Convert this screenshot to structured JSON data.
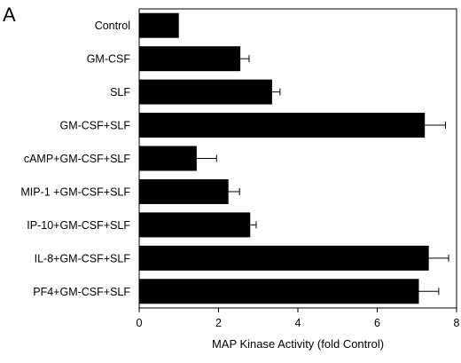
{
  "panel_label": "A",
  "chart_data": {
    "type": "bar",
    "orientation": "horizontal",
    "categories": [
      "Control",
      "GM-CSF",
      "SLF",
      "GM-CSF+SLF",
      "cAMP+GM-CSF+SLF",
      "MIP-1 +GM-CSF+SLF",
      "IP-10+GM-CSF+SLF",
      "IL-8+GM-CSF+SLF",
      "PF4+GM-CSF+SLF"
    ],
    "values": [
      1.0,
      2.55,
      3.35,
      7.2,
      1.45,
      2.25,
      2.8,
      7.3,
      7.05
    ],
    "errors": [
      0.0,
      0.22,
      0.2,
      0.52,
      0.5,
      0.28,
      0.15,
      0.5,
      0.5
    ],
    "xlabel": "MAP Kinase Activity (fold Control)",
    "ylabel": "",
    "xlim": [
      0,
      8
    ],
    "xticks": [
      0,
      2,
      4,
      6,
      8
    ],
    "bar_color": "#000000",
    "grid": false
  }
}
